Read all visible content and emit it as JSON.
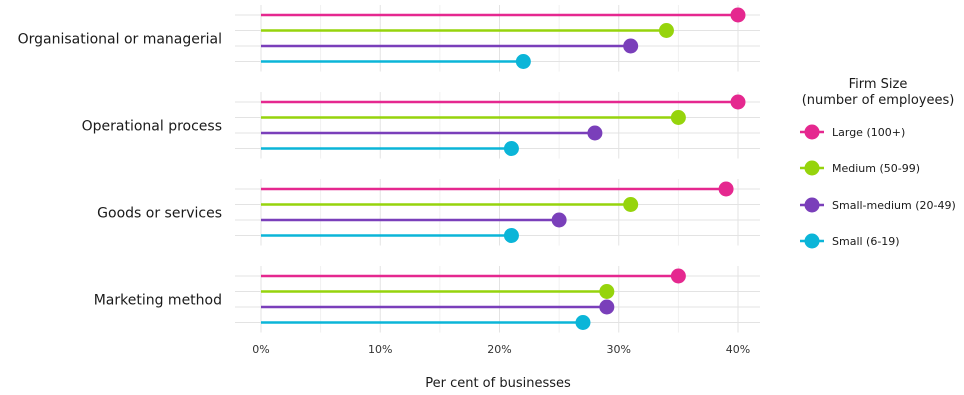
{
  "chart_data": {
    "type": "lollipop",
    "categories": [
      "Organisational or managerial",
      "Operational process",
      "Goods or services",
      "Marketing method"
    ],
    "series": [
      {
        "name": "Large (100+)",
        "color": "#e5288f",
        "values": [
          40,
          40,
          39,
          35
        ]
      },
      {
        "name": "Medium (50-99)",
        "color": "#96d40c",
        "values": [
          34,
          35,
          31,
          29
        ]
      },
      {
        "name": "Small-medium (20-49)",
        "color": "#7a3fba",
        "values": [
          31,
          28,
          25,
          29
        ]
      },
      {
        "name": "Small (6-19)",
        "color": "#0bb5d8",
        "values": [
          22,
          21,
          21,
          27
        ]
      }
    ],
    "x_ticks": [
      "0%",
      "10%",
      "20%",
      "30%",
      "40%"
    ],
    "xlabel": "Per cent of businesses",
    "xlim": [
      0,
      41
    ],
    "legend": {
      "title_line1": "Firm Size",
      "title_line2": "(number of employees)",
      "placement": "right"
    },
    "grid": true
  }
}
